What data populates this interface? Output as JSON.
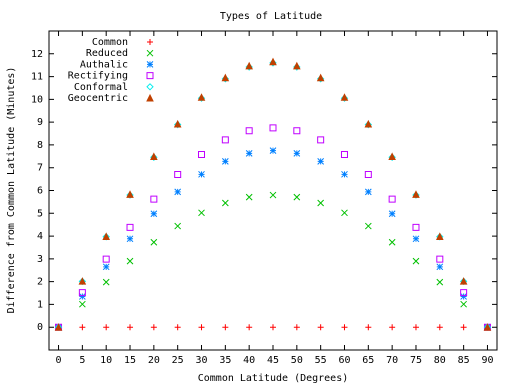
{
  "chart_data": {
    "type": "scatter",
    "title": "Types of Latitude",
    "xlabel": "Common Latitude (Degrees)",
    "ylabel": "Difference from Common Latitude (Minutes)",
    "x": [
      0,
      5,
      10,
      15,
      20,
      25,
      30,
      35,
      40,
      45,
      50,
      55,
      60,
      65,
      70,
      75,
      80,
      85,
      90
    ],
    "xlim": [
      -2,
      92
    ],
    "ylim": [
      -1,
      13
    ],
    "xticks": [
      0,
      5,
      10,
      15,
      20,
      25,
      30,
      35,
      40,
      45,
      50,
      55,
      60,
      65,
      70,
      75,
      80,
      85,
      90
    ],
    "yticks": [
      0,
      1,
      2,
      3,
      4,
      5,
      6,
      7,
      8,
      9,
      10,
      11,
      12
    ],
    "legend": "top-left",
    "series": [
      {
        "name": "Common",
        "color": "#ff0000",
        "marker": "plus",
        "values": [
          0,
          0,
          0,
          0,
          0,
          0,
          0,
          0,
          0,
          0,
          0,
          0,
          0,
          0,
          0,
          0,
          0,
          0,
          0
        ]
      },
      {
        "name": "Reduced",
        "color": "#00c000",
        "marker": "cross",
        "values": [
          0,
          1.01,
          1.98,
          2.9,
          3.73,
          4.44,
          5.02,
          5.45,
          5.71,
          5.8,
          5.71,
          5.45,
          5.02,
          4.44,
          3.73,
          2.9,
          1.98,
          1.01,
          0
        ]
      },
      {
        "name": "Authalic",
        "color": "#0080ff",
        "marker": "star",
        "values": [
          0,
          1.35,
          2.65,
          3.88,
          4.98,
          5.94,
          6.71,
          7.28,
          7.63,
          7.75,
          7.63,
          7.28,
          6.71,
          5.94,
          4.98,
          3.88,
          2.65,
          1.35,
          0
        ]
      },
      {
        "name": "Rectifying",
        "color": "#c000ff",
        "marker": "square",
        "values": [
          0,
          1.52,
          2.99,
          4.38,
          5.62,
          6.7,
          7.58,
          8.22,
          8.62,
          8.75,
          8.62,
          8.22,
          7.58,
          6.7,
          5.62,
          4.38,
          2.99,
          1.52,
          0
        ]
      },
      {
        "name": "Conformal",
        "color": "#00eeee",
        "marker": "diamond",
        "values": [
          0,
          2.01,
          3.97,
          5.8,
          7.46,
          8.89,
          10.05,
          10.9,
          11.42,
          11.6,
          11.42,
          10.9,
          10.05,
          8.89,
          7.46,
          5.8,
          3.97,
          2.01,
          0
        ]
      },
      {
        "name": "Geocentric",
        "color": "#c04000",
        "marker": "triangle",
        "values": [
          0,
          2.02,
          3.98,
          5.83,
          7.49,
          8.92,
          10.09,
          10.95,
          11.47,
          11.65,
          11.47,
          10.95,
          10.09,
          8.92,
          7.49,
          5.83,
          3.98,
          2.02,
          0
        ]
      }
    ]
  }
}
